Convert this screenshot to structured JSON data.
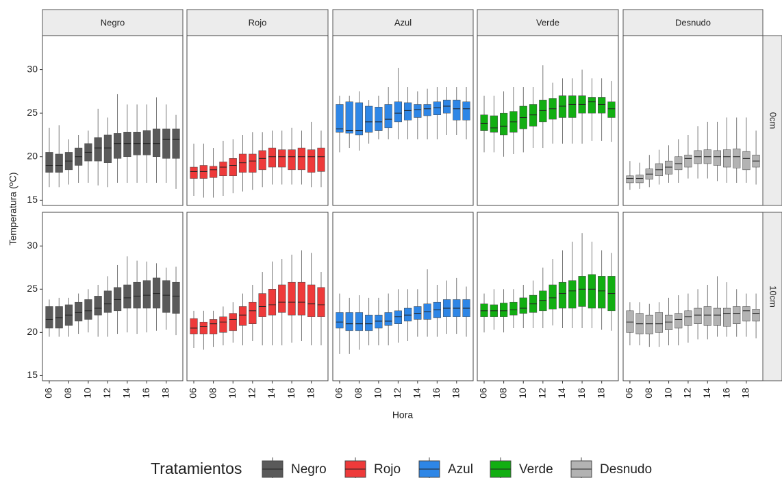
{
  "chart_data": {
    "type": "boxplot",
    "x_label": "Hora",
    "y_label": "Temperatura (ºC)",
    "legend_title": "Tratamientos",
    "categories": [
      "06",
      null,
      "08",
      null,
      "10",
      null,
      "12",
      null,
      "14",
      null,
      "16",
      null,
      "18",
      null
    ],
    "facet_rows": [
      "0cm",
      "10cm"
    ],
    "ylim": [
      14.4,
      33.9
    ],
    "yticks": [
      15,
      20,
      25,
      30
    ],
    "series": [
      {
        "name": "Negro",
        "color": "#5a5a5a",
        "panels": [
          {
            "min": [
              16.5,
              16.5,
              16.8,
              17,
              17,
              16.7,
              16.5,
              17,
              17,
              17,
              17,
              17,
              17,
              16.3
            ],
            "q1": [
              18.2,
              18.2,
              18.5,
              19,
              19.5,
              19.5,
              19.3,
              19.8,
              20,
              20.2,
              20.2,
              20,
              19.8,
              19.8
            ],
            "median": [
              19,
              19,
              19.5,
              20,
              20.5,
              21,
              21,
              21.5,
              21.5,
              21.5,
              21.5,
              21.5,
              22,
              22
            ],
            "q3": [
              20.5,
              20.3,
              20.5,
              21,
              21.5,
              22.2,
              22.5,
              22.7,
              22.8,
              22.8,
              23,
              23.2,
              23.2,
              23.2
            ],
            "max": [
              23.3,
              23.6,
              22,
              22.5,
              23,
              25.5,
              24.5,
              27.2,
              26,
              26,
              26,
              26.8,
              26,
              24.8
            ]
          },
          {
            "min": [
              19.5,
              19.5,
              19.5,
              19.8,
              20,
              19.5,
              19.5,
              19.8,
              20,
              19.8,
              20,
              20.2,
              20.3,
              19.7
            ],
            "q1": [
              20.5,
              20.5,
              20.8,
              21.3,
              21.5,
              22,
              22.3,
              22.5,
              22.8,
              22.8,
              22.8,
              22.8,
              22.3,
              22.2
            ],
            "median": [
              21.5,
              21.7,
              22,
              22.3,
              22.5,
              22.8,
              23.3,
              23.8,
              24,
              24.2,
              24.3,
              24.5,
              24.3,
              24.2
            ],
            "q3": [
              23,
              23,
              23.2,
              23.5,
              23.8,
              24.2,
              24.8,
              25.2,
              25.5,
              25.8,
              26,
              26.3,
              26,
              25.8
            ],
            "max": [
              23.8,
              24,
              24,
              24.5,
              25,
              25.5,
              26.5,
              27.8,
              28.8,
              28.3,
              28.2,
              28,
              27.5,
              27.6
            ]
          }
        ]
      },
      {
        "name": "Rojo",
        "color": "#ee3a3a",
        "panels": [
          {
            "min": [
              15.5,
              15.3,
              15.3,
              15.5,
              15.8,
              16,
              16.2,
              16.5,
              16.8,
              16.8,
              16.8,
              16.8,
              16.5,
              16.5
            ],
            "q1": [
              17.5,
              17.5,
              17.6,
              17.8,
              17.8,
              18.2,
              18.2,
              18.5,
              18.8,
              18.8,
              18.5,
              18.5,
              18.2,
              18.3
            ],
            "median": [
              18.3,
              18.3,
              18.5,
              18.8,
              19,
              19.3,
              19.5,
              19.8,
              20,
              20,
              20,
              20,
              20,
              20
            ],
            "q3": [
              18.8,
              19,
              18.9,
              19.4,
              19.8,
              20.3,
              20.3,
              20.7,
              21,
              20.8,
              20.8,
              21,
              20.8,
              21
            ],
            "max": [
              21.5,
              21.5,
              21,
              21.8,
              22,
              22.5,
              22.8,
              22.8,
              23,
              23,
              23.3,
              23,
              24,
              23
            ]
          },
          {
            "min": [
              18.2,
              18,
              18.3,
              18.5,
              18.8,
              18.5,
              19,
              18.5,
              18.5,
              18.5,
              18.8,
              19,
              18.5,
              18.5
            ],
            "q1": [
              19.8,
              19.8,
              19.8,
              20,
              20.2,
              20.8,
              21,
              21.8,
              22,
              22.3,
              22,
              22,
              21.8,
              21.8
            ],
            "median": [
              20.5,
              20.7,
              21,
              21.2,
              21.5,
              22,
              22.5,
              23,
              23.2,
              23.5,
              23.5,
              23.5,
              23.3,
              23.2
            ],
            "q3": [
              21.6,
              21.2,
              21.5,
              21.8,
              22.2,
              23,
              23.5,
              24.5,
              25,
              25.5,
              25.8,
              25.8,
              25.5,
              25.2
            ],
            "max": [
              22.5,
              22.5,
              22.5,
              23,
              23.5,
              24.5,
              25.5,
              27,
              28.2,
              28.5,
              29,
              29.5,
              29.2,
              27
            ]
          }
        ]
      },
      {
        "name": "Azul",
        "color": "#2e86e6",
        "panels": [
          {
            "min": [
              20.5,
              21,
              20.7,
              21.5,
              22,
              22,
              22,
              22,
              22,
              22,
              22,
              22.5,
              22.5,
              22
            ],
            "q1": [
              22.8,
              22.7,
              22.5,
              22.8,
              23,
              23.3,
              24,
              24.2,
              24.5,
              24.7,
              24.8,
              25,
              24.2,
              24.2
            ],
            "median": [
              23.2,
              23,
              23,
              24,
              24,
              24.3,
              25,
              25.3,
              25.4,
              25.5,
              25.6,
              25.8,
              25.5,
              25.5
            ],
            "q3": [
              26,
              26.3,
              26.2,
              25.8,
              25.7,
              26,
              26.3,
              26.2,
              26,
              26,
              26.3,
              26.5,
              26.5,
              26.3
            ],
            "max": [
              27,
              27,
              27.5,
              26.5,
              27,
              28,
              30.2,
              28,
              27.5,
              27.8,
              28,
              28,
              28,
              28
            ]
          },
          {
            "min": [
              17.5,
              17.5,
              18,
              18.5,
              18.5,
              18.5,
              18.8,
              19,
              19.5,
              19.5,
              19.5,
              19.8,
              19.8,
              19.5
            ],
            "q1": [
              20.5,
              20.2,
              20.2,
              20.2,
              20.5,
              20.8,
              21,
              21.3,
              21.5,
              21.5,
              21.7,
              21.8,
              21.8,
              21.8
            ],
            "median": [
              21.2,
              21,
              21,
              21,
              21.3,
              21.3,
              21.8,
              22,
              22.2,
              22.4,
              22.6,
              22.8,
              22.8,
              22.8
            ],
            "q3": [
              22.3,
              22.3,
              22.3,
              22,
              22,
              22.3,
              22.5,
              22.8,
              23,
              23.3,
              23.5,
              23.8,
              23.8,
              23.8
            ],
            "max": [
              24.5,
              24,
              24.3,
              24,
              24,
              24.5,
              25,
              25,
              25,
              27.3,
              25.5,
              26,
              26.3,
              25.3
            ]
          }
        ]
      },
      {
        "name": "Verde",
        "color": "#12ae12",
        "panels": [
          {
            "min": [
              20.5,
              20.5,
              20,
              20.3,
              20.5,
              21,
              21,
              21.5,
              21.5,
              21.5,
              21.5,
              21.8,
              21.8,
              21.7
            ],
            "q1": [
              23,
              22.8,
              22.5,
              22.8,
              23.2,
              23.5,
              24,
              24.3,
              24.5,
              24.5,
              25,
              25,
              25,
              24.5
            ],
            "median": [
              23.8,
              23.3,
              23.5,
              24,
              24.5,
              24.8,
              25.3,
              25.5,
              25.8,
              26,
              26,
              26.3,
              26,
              25.5
            ],
            "q3": [
              24.8,
              24.7,
              25,
              25.2,
              25.8,
              26,
              26.5,
              26.7,
              27,
              27,
              27,
              26.8,
              26.8,
              26.3
            ],
            "max": [
              27,
              27,
              27.5,
              28,
              28,
              28,
              30.5,
              28.5,
              29,
              29,
              30,
              29,
              29,
              28.7
            ]
          },
          {
            "min": [
              20,
              20.3,
              20,
              20.5,
              20.5,
              20.5,
              20.5,
              20.8,
              20.5,
              20.5,
              20.5,
              20.5,
              20.3,
              20.2
            ],
            "q1": [
              21.8,
              21.8,
              21.8,
              22,
              22.2,
              22.3,
              22.5,
              22.7,
              22.8,
              22.8,
              23,
              22.8,
              22.8,
              22.5
            ],
            "median": [
              22.5,
              22.5,
              22.5,
              22.6,
              22.8,
              23.3,
              23.7,
              24,
              24.5,
              24.8,
              25,
              25,
              24.8,
              24.5
            ],
            "q3": [
              23.3,
              23.2,
              23.4,
              23.5,
              24,
              24.3,
              24.8,
              25.5,
              25.8,
              26,
              26.5,
              26.7,
              26.5,
              26.5
            ],
            "max": [
              24.5,
              25,
              25,
              25,
              25.5,
              26,
              27.5,
              28.5,
              29.5,
              30.5,
              31.5,
              30.5,
              29.5,
              29.2
            ]
          }
        ]
      },
      {
        "name": "Desnudo",
        "color": "#b3b3b3",
        "panels": [
          {
            "min": [
              16.2,
              16.3,
              16.5,
              16.8,
              17,
              17,
              17.5,
              17.5,
              17.5,
              17.2,
              17,
              17,
              17,
              16.8
            ],
            "q1": [
              17,
              17,
              17.4,
              17.8,
              18,
              18.5,
              18.8,
              19.2,
              19.2,
              19,
              18.8,
              18.7,
              18.5,
              18.8
            ],
            "median": [
              17.5,
              17.5,
              18,
              18.5,
              18.8,
              19.2,
              19.8,
              20,
              20,
              20,
              20,
              20,
              19.8,
              19.5
            ],
            "q3": [
              17.8,
              17.9,
              18.6,
              19.2,
              19.5,
              20,
              20.2,
              20.7,
              20.8,
              20.7,
              20.8,
              20.9,
              20.6,
              20.2
            ],
            "max": [
              19.5,
              19.3,
              20.2,
              20.8,
              21.3,
              22,
              22.5,
              23.5,
              24,
              24,
              24.5,
              24.5,
              24.5,
              23
            ]
          },
          {
            "min": [
              18.5,
              18.5,
              18.3,
              18.3,
              18.5,
              18.5,
              18.8,
              19.2,
              19.2,
              19.5,
              19.5,
              19.5,
              19.5,
              19.3
            ],
            "q1": [
              20,
              19.8,
              19.8,
              20,
              20.3,
              20.5,
              20.8,
              21,
              20.8,
              20.8,
              20.7,
              21,
              21.3,
              21.3
            ],
            "median": [
              21.2,
              21,
              21,
              21,
              21.2,
              21.5,
              21.8,
              22,
              22,
              22,
              22.2,
              22.2,
              22.5,
              22.2
            ],
            "q3": [
              22.5,
              22.2,
              22,
              22.3,
              22,
              22.2,
              22.5,
              22.8,
              23,
              22.8,
              22.8,
              23,
              23,
              22.7
            ],
            "max": [
              23.5,
              23.5,
              23.3,
              23.5,
              24,
              24.3,
              24.5,
              25,
              25.5,
              26.5,
              25.8,
              25,
              24.5,
              24.5
            ]
          }
        ]
      }
    ]
  }
}
